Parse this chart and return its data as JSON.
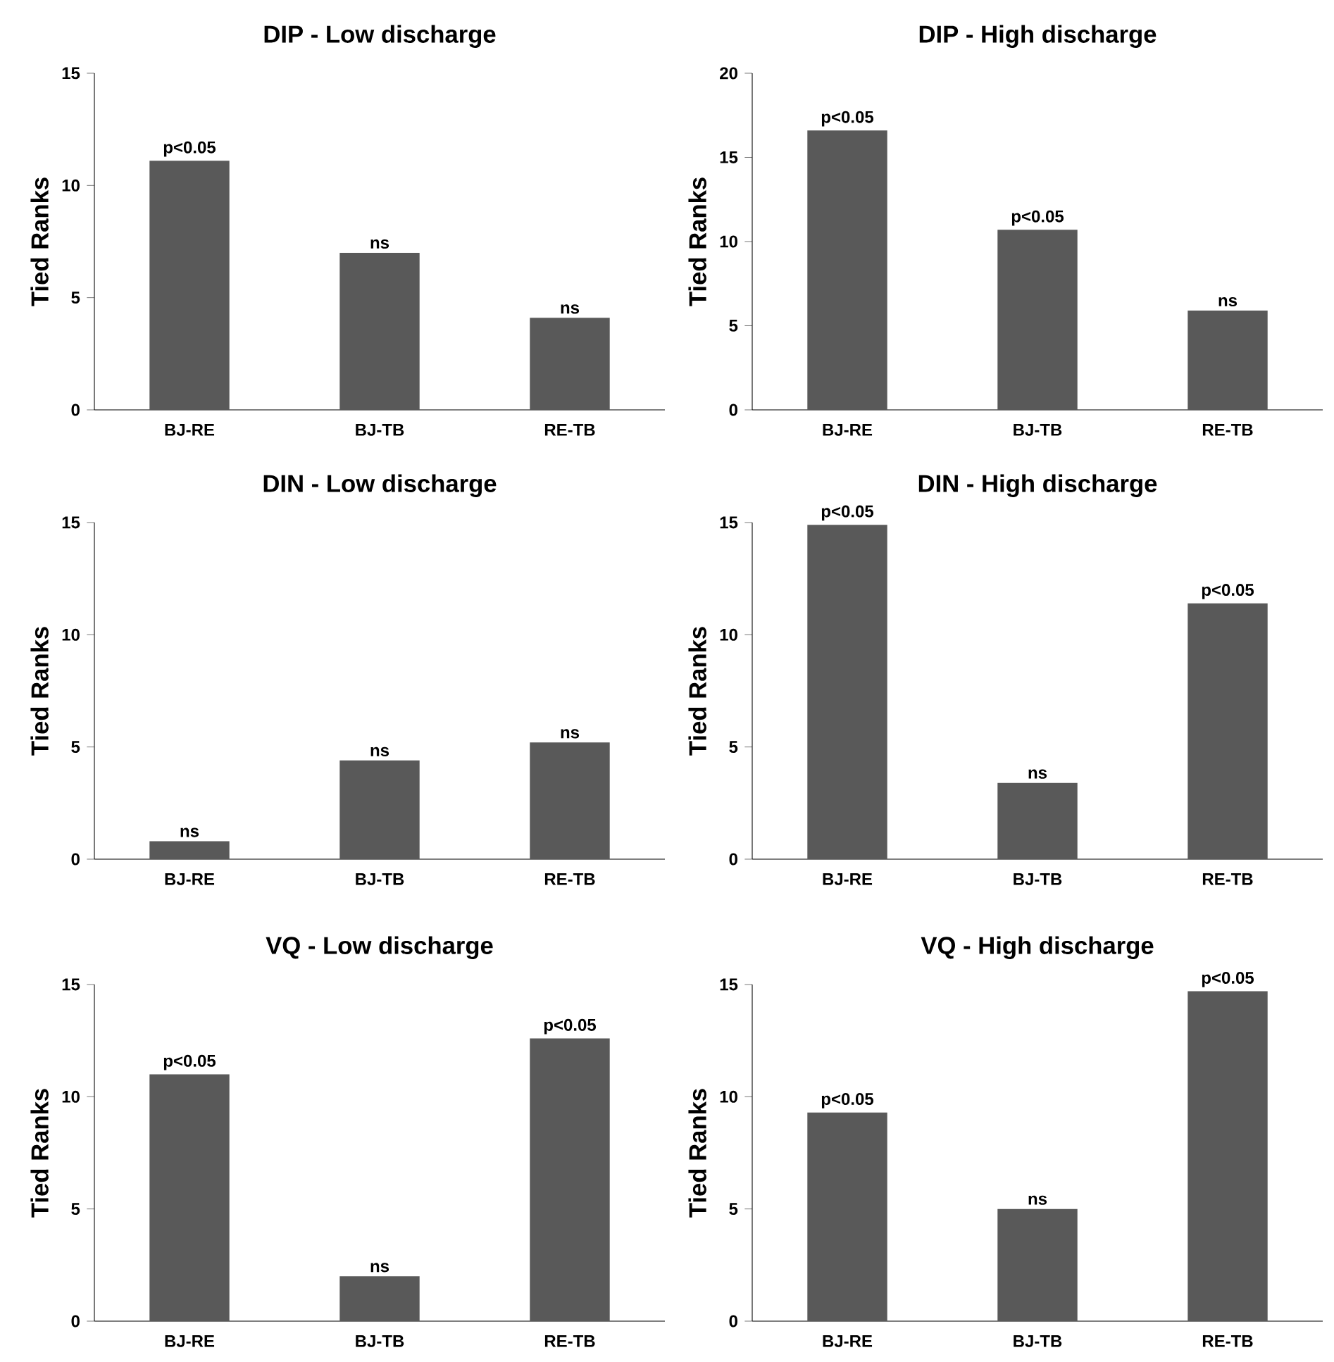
{
  "chart_data": [
    {
      "type": "bar",
      "title": "DIP - Low discharge",
      "ylabel": "Tied Ranks",
      "categories": [
        "BJ-RE",
        "BJ-TB",
        "RE-TB"
      ],
      "values": [
        11.1,
        7.0,
        4.1
      ],
      "color": "#595959",
      "ylim": [
        0,
        15
      ],
      "yticks": [
        0,
        5,
        10,
        15
      ],
      "annotations": [
        {
          "text": "p<0.05",
          "x": "BJ-RE",
          "y": 11.1
        },
        {
          "text": "ns",
          "x": "BJ-TB",
          "y": 7.0
        },
        {
          "text": "ns",
          "x": "RE-TB",
          "y": 4.1
        }
      ]
    },
    {
      "type": "bar",
      "title": "DIP - High discharge",
      "ylabel": "Tied Ranks",
      "categories": [
        "BJ-RE",
        "BJ-TB",
        "RE-TB"
      ],
      "values": [
        16.6,
        10.7,
        5.9
      ],
      "color": "#595959",
      "ylim": [
        0,
        20
      ],
      "yticks": [
        0,
        5,
        10,
        15,
        20
      ],
      "annotations": [
        {
          "text": "p<0.05",
          "x": "BJ-RE",
          "y": 16.6
        },
        {
          "text": "p<0.05",
          "x": "BJ-TB",
          "y": 10.7
        },
        {
          "text": "ns",
          "x": "RE-TB",
          "y": 5.9
        }
      ]
    },
    {
      "type": "bar",
      "title": "DIN - Low discharge",
      "ylabel": "Tied Ranks",
      "categories": [
        "BJ-RE",
        "BJ-TB",
        "RE-TB"
      ],
      "values": [
        0.8,
        4.4,
        5.2
      ],
      "color": "#595959",
      "ylim": [
        0,
        15
      ],
      "yticks": [
        0,
        5,
        10,
        15
      ],
      "annotations": [
        {
          "text": "ns",
          "x": "BJ-RE",
          "y": 0.8
        },
        {
          "text": "ns",
          "x": "BJ-TB",
          "y": 4.4
        },
        {
          "text": "ns",
          "x": "RE-TB",
          "y": 5.2
        }
      ]
    },
    {
      "type": "bar",
      "title": "DIN - High discharge",
      "ylabel": "Tied Ranks",
      "categories": [
        "BJ-RE",
        "BJ-TB",
        "RE-TB"
      ],
      "values": [
        14.9,
        3.4,
        11.4
      ],
      "color": "#595959",
      "ylim": [
        0,
        15
      ],
      "yticks": [
        0,
        5,
        10,
        15
      ],
      "annotations": [
        {
          "text": "p<0.05",
          "x": "BJ-RE",
          "y": 14.9
        },
        {
          "text": "ns",
          "x": "BJ-TB",
          "y": 3.4
        },
        {
          "text": "p<0.05",
          "x": "RE-TB",
          "y": 11.4
        }
      ]
    },
    {
      "type": "bar",
      "title": "VQ - Low discharge",
      "ylabel": "Tied Ranks",
      "categories": [
        "BJ-RE",
        "BJ-TB",
        "RE-TB"
      ],
      "values": [
        11.0,
        2.0,
        12.6
      ],
      "color": "#595959",
      "ylim": [
        0,
        15
      ],
      "yticks": [
        0,
        5,
        10,
        15
      ],
      "annotations": [
        {
          "text": "p<0.05",
          "x": "BJ-RE",
          "y": 11.0
        },
        {
          "text": "ns",
          "x": "BJ-TB",
          "y": 2.0
        },
        {
          "text": "p<0.05",
          "x": "RE-TB",
          "y": 12.6
        }
      ]
    },
    {
      "type": "bar",
      "title": "VQ - High discharge",
      "ylabel": "Tied Ranks",
      "categories": [
        "BJ-RE",
        "BJ-TB",
        "RE-TB"
      ],
      "values": [
        9.3,
        5.0,
        14.7
      ],
      "color": "#595959",
      "ylim": [
        0,
        15
      ],
      "yticks": [
        0,
        5,
        10,
        15
      ],
      "annotations": [
        {
          "text": "p<0.05",
          "x": "BJ-RE",
          "y": 9.3
        },
        {
          "text": "ns",
          "x": "BJ-TB",
          "y": 5.0
        },
        {
          "text": "p<0.05",
          "x": "RE-TB",
          "y": 14.7
        }
      ]
    }
  ]
}
